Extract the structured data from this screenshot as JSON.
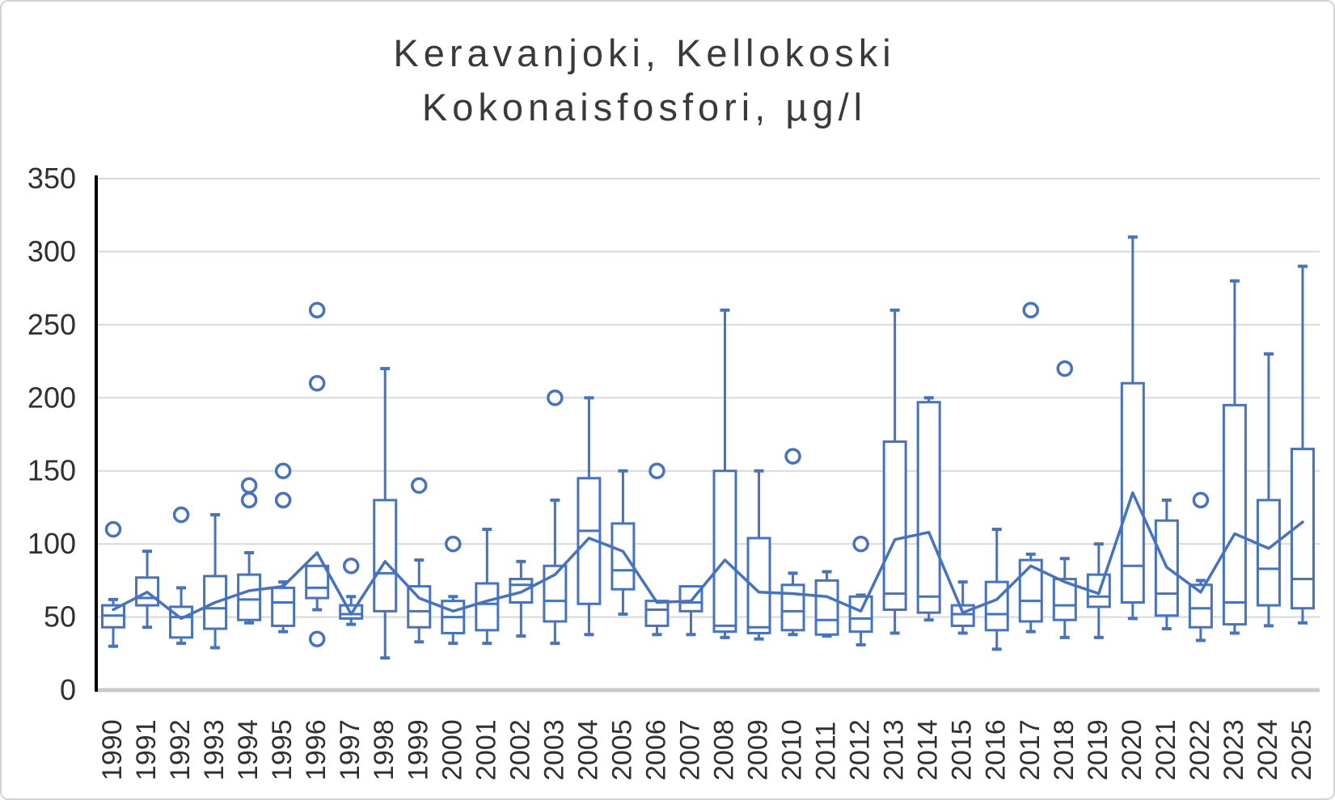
{
  "header": {
    "title_line1": "Keravanjoki, Kellokoski",
    "title_line2": "Kokonaisfosfori, µg/l"
  },
  "chart_data": {
    "type": "box",
    "title": "Keravanjoki, Kellokoski",
    "subtitle": "Kokonaisfosfori, µg/l",
    "grid": true,
    "legend_position": "none",
    "y_axis": {
      "min": 0,
      "max": 350,
      "step": 50,
      "tick_labels": [
        "0",
        "50",
        "100",
        "150",
        "200",
        "250",
        "300",
        "350"
      ]
    },
    "categories": [
      "1990",
      "1991",
      "1992",
      "1993",
      "1994",
      "1995",
      "1996",
      "1997",
      "1998",
      "1999",
      "2000",
      "2001",
      "2002",
      "2003",
      "2004",
      "2005",
      "2006",
      "2007",
      "2008",
      "2009",
      "2010",
      "2011",
      "2012",
      "2013",
      "2014",
      "2015",
      "2016",
      "2017",
      "2018",
      "2019",
      "2020",
      "2021",
      "2022",
      "2023",
      "2024",
      "2025"
    ],
    "series": [
      {
        "name": "box-distribution",
        "type": "box"
      },
      {
        "name": "mean-line",
        "type": "line"
      }
    ],
    "boxes": [
      {
        "year": "1990",
        "low": 30,
        "q1": 43,
        "med": 51,
        "q3": 58,
        "high": 62,
        "mean": 55,
        "outliers": [
          110
        ]
      },
      {
        "year": "1991",
        "low": 43,
        "q1": 58,
        "med": 63,
        "q3": 77,
        "high": 95,
        "mean": 67,
        "outliers": []
      },
      {
        "year": "1992",
        "low": 32,
        "q1": 36,
        "med": 50,
        "q3": 57,
        "high": 70,
        "mean": 49,
        "outliers": [
          120
        ]
      },
      {
        "year": "1993",
        "low": 29,
        "q1": 42,
        "med": 56,
        "q3": 78,
        "high": 120,
        "mean": 60,
        "outliers": []
      },
      {
        "year": "1994",
        "low": 46,
        "q1": 48,
        "med": 62,
        "q3": 79,
        "high": 94,
        "mean": 68,
        "outliers": [
          130,
          140
        ]
      },
      {
        "year": "1995",
        "low": 40,
        "q1": 44,
        "med": 60,
        "q3": 70,
        "high": 74,
        "mean": 71,
        "outliers": [
          130,
          150
        ]
      },
      {
        "year": "1996",
        "low": 55,
        "q1": 63,
        "med": 70,
        "q3": 85,
        "high": 85,
        "mean": 94,
        "outliers": [
          35,
          210,
          260
        ]
      },
      {
        "year": "1997",
        "low": 45,
        "q1": 49,
        "med": 52,
        "q3": 58,
        "high": 64,
        "mean": 52,
        "outliers": [
          85
        ]
      },
      {
        "year": "1998",
        "low": 22,
        "q1": 54,
        "med": 80,
        "q3": 130,
        "high": 220,
        "mean": 88,
        "outliers": []
      },
      {
        "year": "1999",
        "low": 33,
        "q1": 43,
        "med": 54,
        "q3": 71,
        "high": 89,
        "mean": 63,
        "outliers": [
          140
        ]
      },
      {
        "year": "2000",
        "low": 32,
        "q1": 39,
        "med": 50,
        "q3": 61,
        "high": 64,
        "mean": 54,
        "outliers": [
          100
        ]
      },
      {
        "year": "2001",
        "low": 32,
        "q1": 41,
        "med": 59,
        "q3": 73,
        "high": 110,
        "mean": 61,
        "outliers": []
      },
      {
        "year": "2002",
        "low": 37,
        "q1": 60,
        "med": 72,
        "q3": 76,
        "high": 88,
        "mean": 67,
        "outliers": []
      },
      {
        "year": "2003",
        "low": 32,
        "q1": 47,
        "med": 61,
        "q3": 85,
        "high": 130,
        "mean": 79,
        "outliers": [
          200
        ]
      },
      {
        "year": "2004",
        "low": 38,
        "q1": 59,
        "med": 109,
        "q3": 145,
        "high": 200,
        "mean": 104,
        "outliers": []
      },
      {
        "year": "2005",
        "low": 52,
        "q1": 69,
        "med": 82,
        "q3": 114,
        "high": 150,
        "mean": 95,
        "outliers": []
      },
      {
        "year": "2006",
        "low": 38,
        "q1": 44,
        "med": 55,
        "q3": 61,
        "high": 61,
        "mean": 60,
        "outliers": [
          150
        ]
      },
      {
        "year": "2007",
        "low": 38,
        "q1": 54,
        "med": 60,
        "q3": 71,
        "high": 71,
        "mean": 61,
        "outliers": []
      },
      {
        "year": "2008",
        "low": 36,
        "q1": 40,
        "med": 44,
        "q3": 150,
        "high": 260,
        "mean": 89,
        "outliers": []
      },
      {
        "year": "2009",
        "low": 35,
        "q1": 39,
        "med": 43,
        "q3": 104,
        "high": 150,
        "mean": 67,
        "outliers": []
      },
      {
        "year": "2010",
        "low": 38,
        "q1": 41,
        "med": 54,
        "q3": 72,
        "high": 80,
        "mean": 66,
        "outliers": [
          160
        ]
      },
      {
        "year": "2011",
        "low": 37,
        "q1": 38,
        "med": 48,
        "q3": 75,
        "high": 81,
        "mean": 64,
        "outliers": []
      },
      {
        "year": "2012",
        "low": 31,
        "q1": 40,
        "med": 49,
        "q3": 64,
        "high": 65,
        "mean": 54,
        "outliers": [
          100
        ]
      },
      {
        "year": "2013",
        "low": 39,
        "q1": 55,
        "med": 66,
        "q3": 170,
        "high": 260,
        "mean": 103,
        "outliers": []
      },
      {
        "year": "2014",
        "low": 48,
        "q1": 53,
        "med": 64,
        "q3": 197,
        "high": 200,
        "mean": 108,
        "outliers": []
      },
      {
        "year": "2015",
        "low": 39,
        "q1": 44,
        "med": 52,
        "q3": 58,
        "high": 74,
        "mean": 53,
        "outliers": []
      },
      {
        "year": "2016",
        "low": 28,
        "q1": 41,
        "med": 52,
        "q3": 74,
        "high": 110,
        "mean": 62,
        "outliers": []
      },
      {
        "year": "2017",
        "low": 40,
        "q1": 47,
        "med": 61,
        "q3": 89,
        "high": 93,
        "mean": 85,
        "outliers": [
          260
        ]
      },
      {
        "year": "2018",
        "low": 36,
        "q1": 48,
        "med": 58,
        "q3": 76,
        "high": 90,
        "mean": 74,
        "outliers": [
          220
        ]
      },
      {
        "year": "2019",
        "low": 36,
        "q1": 57,
        "med": 64,
        "q3": 79,
        "high": 100,
        "mean": 66,
        "outliers": []
      },
      {
        "year": "2020",
        "low": 49,
        "q1": 60,
        "med": 85,
        "q3": 210,
        "high": 310,
        "mean": 135,
        "outliers": []
      },
      {
        "year": "2021",
        "low": 42,
        "q1": 51,
        "med": 66,
        "q3": 116,
        "high": 130,
        "mean": 84,
        "outliers": []
      },
      {
        "year": "2022",
        "low": 34,
        "q1": 43,
        "med": 56,
        "q3": 72,
        "high": 75,
        "mean": 67,
        "outliers": [
          130
        ]
      },
      {
        "year": "2023",
        "low": 39,
        "q1": 45,
        "med": 60,
        "q3": 195,
        "high": 280,
        "mean": 107,
        "outliers": []
      },
      {
        "year": "2024",
        "low": 44,
        "q1": 58,
        "med": 83,
        "q3": 130,
        "high": 230,
        "mean": 97,
        "outliers": []
      },
      {
        "year": "2025",
        "low": 46,
        "q1": 56,
        "med": 76,
        "q3": 165,
        "high": 290,
        "mean": 115,
        "outliers": []
      }
    ],
    "colors": {
      "series_blue": "#4472C4",
      "gridline": "#D9D9D9",
      "baseline": "#C9C9C9",
      "axis_line": "#000000",
      "tick_text": "#303030",
      "title_text": "#3a3a3a",
      "background": "#FFFFFF"
    }
  }
}
